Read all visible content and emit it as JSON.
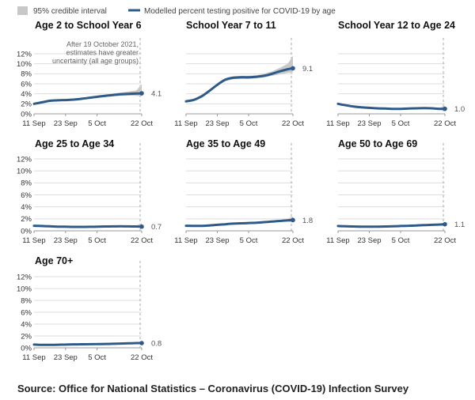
{
  "legend": {
    "interval_label": "95% credible interval",
    "line_label": "Modelled percent testing positive for COVID-19 by age"
  },
  "source": "Source: Office for National Statistics – Coronavirus (COVID-19) Infection Survey",
  "colors": {
    "line": "#2e5a8a",
    "band": "#c8c8c8",
    "grid": "#dddddd",
    "axis": "#999999",
    "ref_line": "#aaaaaa"
  },
  "chart_data": [
    {
      "type": "line",
      "title": "Age 2 to School Year 6",
      "x_ticks": [
        "11 Sep",
        "23 Sep",
        "5 Oct",
        "22 Oct"
      ],
      "y_ticks": [
        "0%",
        "2%",
        "4%",
        "6%",
        "8%",
        "10%",
        "12%"
      ],
      "ylim": [
        0,
        12
      ],
      "x": [
        0,
        3,
        6,
        9,
        12,
        15,
        18,
        21,
        24,
        27,
        30,
        33,
        36,
        39,
        41
      ],
      "values": [
        2.0,
        2.3,
        2.6,
        2.7,
        2.75,
        2.85,
        3.0,
        3.2,
        3.4,
        3.6,
        3.75,
        3.9,
        4.0,
        4.05,
        4.1
      ],
      "lower": [
        1.8,
        2.1,
        2.4,
        2.5,
        2.55,
        2.65,
        2.8,
        3.0,
        3.2,
        3.35,
        3.5,
        3.6,
        3.65,
        3.6,
        3.5
      ],
      "upper": [
        2.2,
        2.5,
        2.8,
        2.9,
        2.95,
        3.05,
        3.2,
        3.45,
        3.65,
        3.85,
        4.05,
        4.25,
        4.45,
        4.7,
        5.9
      ],
      "end_label": "4.1",
      "annotation": [
        "After 19 October 2021,",
        "estimates have greater",
        "uncertainty (all age groups)"
      ]
    },
    {
      "type": "line",
      "title": "School Year 7 to 11",
      "x_ticks": [
        "11 Sep",
        "23 Sep",
        "5 Oct",
        "22 Oct"
      ],
      "y_ticks": [],
      "ylim": [
        0,
        12
      ],
      "x": [
        0,
        3,
        6,
        9,
        12,
        15,
        18,
        21,
        24,
        27,
        30,
        33,
        36,
        39,
        41
      ],
      "values": [
        2.5,
        2.8,
        3.5,
        4.6,
        5.8,
        6.8,
        7.2,
        7.3,
        7.3,
        7.4,
        7.6,
        8.0,
        8.5,
        8.9,
        9.1
      ],
      "lower": [
        2.3,
        2.6,
        3.3,
        4.4,
        5.6,
        6.5,
        6.9,
        7.0,
        7.0,
        7.1,
        7.3,
        7.6,
        7.9,
        8.2,
        8.3
      ],
      "upper": [
        2.7,
        3.0,
        3.8,
        4.9,
        6.1,
        7.1,
        7.5,
        7.6,
        7.6,
        7.7,
        8.0,
        8.5,
        9.2,
        10.0,
        11.6
      ],
      "end_label": "9.1"
    },
    {
      "type": "line",
      "title": "School Year 12 to Age 24",
      "x_ticks": [
        "11 Sep",
        "23 Sep",
        "5 Oct",
        "22 Oct"
      ],
      "y_ticks": [],
      "ylim": [
        0,
        12
      ],
      "x": [
        0,
        3,
        6,
        9,
        12,
        15,
        18,
        21,
        24,
        27,
        30,
        33,
        36,
        39,
        41
      ],
      "values": [
        2.0,
        1.7,
        1.45,
        1.3,
        1.2,
        1.1,
        1.05,
        1.0,
        1.0,
        1.05,
        1.1,
        1.15,
        1.1,
        1.0,
        1.0
      ],
      "lower": [
        1.85,
        1.55,
        1.3,
        1.15,
        1.05,
        0.95,
        0.9,
        0.88,
        0.88,
        0.92,
        0.95,
        1.0,
        0.95,
        0.85,
        0.6
      ],
      "upper": [
        2.15,
        1.85,
        1.6,
        1.45,
        1.35,
        1.25,
        1.2,
        1.12,
        1.12,
        1.18,
        1.25,
        1.3,
        1.27,
        1.22,
        1.6
      ],
      "end_label": "1.0"
    },
    {
      "type": "line",
      "title": "Age 25 to Age 34",
      "x_ticks": [
        "11 Sep",
        "23 Sep",
        "5 Oct",
        "22 Oct"
      ],
      "y_ticks": [
        "0%",
        "2%",
        "4%",
        "6%",
        "8%",
        "10%",
        "12%"
      ],
      "ylim": [
        0,
        12
      ],
      "x": [
        0,
        3,
        6,
        9,
        12,
        15,
        18,
        21,
        24,
        27,
        30,
        33,
        36,
        39,
        41
      ],
      "values": [
        0.85,
        0.8,
        0.75,
        0.7,
        0.68,
        0.66,
        0.66,
        0.67,
        0.7,
        0.72,
        0.74,
        0.75,
        0.74,
        0.72,
        0.7
      ],
      "lower": [
        0.75,
        0.7,
        0.66,
        0.62,
        0.6,
        0.58,
        0.58,
        0.59,
        0.62,
        0.64,
        0.66,
        0.66,
        0.64,
        0.6,
        0.45
      ],
      "upper": [
        0.95,
        0.9,
        0.84,
        0.78,
        0.76,
        0.74,
        0.74,
        0.75,
        0.78,
        0.8,
        0.82,
        0.84,
        0.86,
        0.9,
        1.3
      ],
      "end_label": "0.7"
    },
    {
      "type": "line",
      "title": "Age 35 to Age 49",
      "x_ticks": [
        "11 Sep",
        "23 Sep",
        "5 Oct",
        "22 Oct"
      ],
      "y_ticks": [],
      "ylim": [
        0,
        12
      ],
      "x": [
        0,
        3,
        6,
        9,
        12,
        15,
        18,
        21,
        24,
        27,
        30,
        33,
        36,
        39,
        41
      ],
      "values": [
        0.85,
        0.82,
        0.83,
        0.9,
        1.0,
        1.1,
        1.2,
        1.25,
        1.3,
        1.35,
        1.45,
        1.55,
        1.65,
        1.75,
        1.8
      ],
      "lower": [
        0.77,
        0.74,
        0.75,
        0.82,
        0.92,
        1.02,
        1.12,
        1.17,
        1.22,
        1.27,
        1.36,
        1.45,
        1.52,
        1.55,
        1.4
      ],
      "upper": [
        0.93,
        0.9,
        0.91,
        0.98,
        1.08,
        1.18,
        1.28,
        1.33,
        1.38,
        1.43,
        1.54,
        1.66,
        1.8,
        1.98,
        2.4
      ],
      "end_label": "1.8"
    },
    {
      "type": "line",
      "title": "Age 50 to Age 69",
      "x_ticks": [
        "11 Sep",
        "23 Sep",
        "5 Oct",
        "22 Oct"
      ],
      "y_ticks": [],
      "ylim": [
        0,
        12
      ],
      "x": [
        0,
        3,
        6,
        9,
        12,
        15,
        18,
        21,
        24,
        27,
        30,
        33,
        36,
        39,
        41
      ],
      "values": [
        0.8,
        0.75,
        0.72,
        0.7,
        0.7,
        0.7,
        0.72,
        0.75,
        0.8,
        0.85,
        0.9,
        0.95,
        1.0,
        1.05,
        1.1
      ],
      "lower": [
        0.74,
        0.69,
        0.66,
        0.64,
        0.64,
        0.64,
        0.66,
        0.69,
        0.74,
        0.79,
        0.84,
        0.88,
        0.92,
        0.94,
        0.9
      ],
      "upper": [
        0.86,
        0.81,
        0.78,
        0.76,
        0.76,
        0.76,
        0.78,
        0.81,
        0.86,
        0.91,
        0.96,
        1.02,
        1.08,
        1.16,
        1.4
      ],
      "end_label": "1.1"
    },
    {
      "type": "line",
      "title": "Age 70+",
      "x_ticks": [
        "11 Sep",
        "23 Sep",
        "5 Oct",
        "22 Oct"
      ],
      "y_ticks": [
        "0%",
        "2%",
        "4%",
        "6%",
        "8%",
        "10%",
        "12%"
      ],
      "ylim": [
        0,
        12
      ],
      "x": [
        0,
        3,
        6,
        9,
        12,
        15,
        18,
        21,
        24,
        27,
        30,
        33,
        36,
        39,
        41
      ],
      "values": [
        0.55,
        0.5,
        0.5,
        0.52,
        0.55,
        0.58,
        0.6,
        0.62,
        0.63,
        0.65,
        0.68,
        0.72,
        0.76,
        0.8,
        0.8
      ],
      "lower": [
        0.5,
        0.45,
        0.45,
        0.47,
        0.5,
        0.53,
        0.55,
        0.57,
        0.58,
        0.6,
        0.63,
        0.66,
        0.69,
        0.7,
        0.6
      ],
      "upper": [
        0.6,
        0.55,
        0.55,
        0.57,
        0.6,
        0.63,
        0.65,
        0.67,
        0.68,
        0.7,
        0.73,
        0.78,
        0.83,
        0.9,
        1.1
      ],
      "end_label": "0.8"
    }
  ]
}
